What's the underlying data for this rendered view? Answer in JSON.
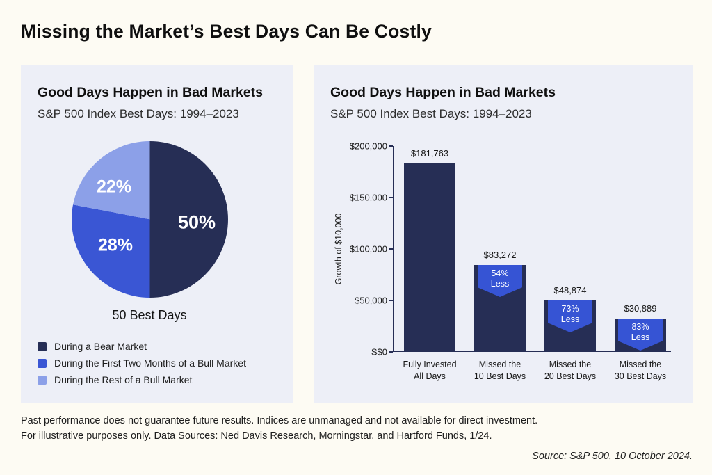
{
  "page": {
    "title": "Missing the Market’s Best Days Can Be Costly",
    "disclaimer_line1": "Past performance does not guarantee future results. Indices are unmanaged and not available for direct investment.",
    "disclaimer_line2": "For illustrative purposes only. Data Sources: Ned Davis Research, Morningstar, and Hartford Funds, 1/24.",
    "source": "Source: S&P 500, 10 October 2024."
  },
  "colors": {
    "page_bg": "#fdfbf3",
    "panel_bg": "#edeff7",
    "navy": "#262e55",
    "blue": "#3a56d4",
    "light_blue": "#8ca0e8",
    "badge_blue": "#3654d4"
  },
  "left_panel": {
    "title": "Good Days Happen in Bad Markets",
    "subtitle": "S&P 500 Index Best Days: 1994–2023"
  },
  "right_panel": {
    "title": "Good Days Happen in Bad Markets",
    "subtitle": "S&P 500 Index Best Days: 1994–2023"
  },
  "chart_data": [
    {
      "type": "pie",
      "title": "Good Days Happen in Bad Markets",
      "subtitle": "S&P 500 Index Best Days: 1994–2023",
      "caption": "50 Best Days",
      "slices": [
        {
          "label": "During a Bear Market",
          "value": 50,
          "display": "50%",
          "color": "#262e55"
        },
        {
          "label": "During the First Two Months of a Bull Market",
          "value": 28,
          "display": "28%",
          "color": "#3a56d4"
        },
        {
          "label": "During the Rest of a Bull Market",
          "value": 22,
          "display": "22%",
          "color": "#8ca0e8"
        }
      ],
      "legend_position": "bottom-left"
    },
    {
      "type": "bar",
      "title": "Good Days Happen in Bad Markets",
      "subtitle": "S&P 500 Index Best Days: 1994–2023",
      "ylabel": "Growth of $10,000",
      "ylim": [
        0,
        200000
      ],
      "yticks": [
        "$200,000",
        "$150,000",
        "$100,000",
        "$50,000",
        "S$0"
      ],
      "grid": false,
      "bar_color": "#262e55",
      "badge_color": "#3654d4",
      "categories": [
        [
          "Fully Invested",
          "All Days"
        ],
        [
          "Missed the",
          "10 Best Days"
        ],
        [
          "Missed the",
          "20 Best Days"
        ],
        [
          "Missed the",
          "30 Best Days"
        ]
      ],
      "values": [
        181763,
        83272,
        48874,
        30889
      ],
      "value_labels": [
        "$181,763",
        "$83,272",
        "$48,874",
        "$30,889"
      ],
      "badges": [
        null,
        [
          "54%",
          "Less"
        ],
        [
          "73%",
          "Less"
        ],
        [
          "83%",
          "Less"
        ]
      ]
    }
  ]
}
